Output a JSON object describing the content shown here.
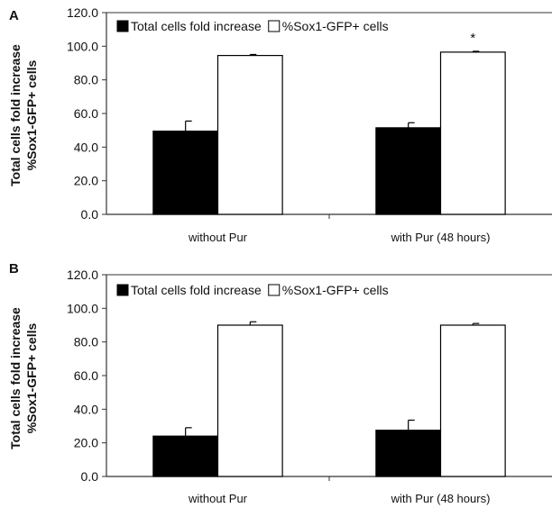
{
  "colors": {
    "series_total": "#000000",
    "series_sox1": "#ffffff",
    "axis": "#333333"
  },
  "chart_data": [
    {
      "panel_label": "A",
      "type": "bar",
      "ylabel": [
        "Total cells fold increase",
        "%Sox1-GFP+ cells"
      ],
      "categories": [
        "without Pur",
        "with Pur (48 hours)"
      ],
      "ylim": [
        0,
        120
      ],
      "yticks": [
        "0.0",
        "20.0",
        "40.0",
        "60.0",
        "80.0",
        "100.0",
        "120.0"
      ],
      "legend_position": "top-left-inside",
      "series": [
        {
          "name": "Total cells fold increase",
          "values": [
            49.5,
            51.5
          ],
          "errors": [
            6.0,
            3.0
          ]
        },
        {
          "name": "%Sox1-GFP+ cells",
          "values": [
            94.5,
            96.5
          ],
          "errors": [
            0.6,
            0.5
          ]
        }
      ],
      "annotations": [
        {
          "text": "*",
          "category_index": 1,
          "series_index": 1
        }
      ]
    },
    {
      "panel_label": "B",
      "type": "bar",
      "ylabel": [
        "Total cells fold increase",
        "%Sox1-GFP+ cells"
      ],
      "categories": [
        "without Pur",
        "with Pur (48 hours)"
      ],
      "ylim": [
        0,
        120
      ],
      "yticks": [
        "0.0",
        "20.0",
        "40.0",
        "60.0",
        "80.0",
        "100.0",
        "120.0"
      ],
      "legend_position": "top-left-inside",
      "series": [
        {
          "name": "Total cells fold increase",
          "values": [
            24.0,
            27.5
          ],
          "errors": [
            5.0,
            6.0
          ]
        },
        {
          "name": "%Sox1-GFP+ cells",
          "values": [
            90.0,
            90.0
          ],
          "errors": [
            2.0,
            1.0
          ]
        }
      ],
      "annotations": []
    }
  ]
}
